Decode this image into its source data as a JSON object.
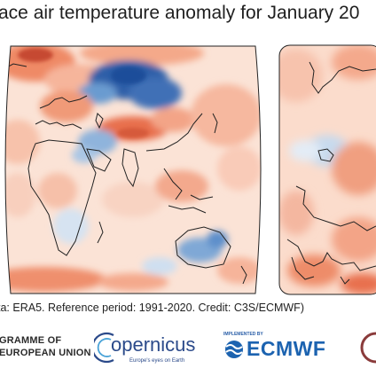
{
  "title": "ace air temperature anomaly for January 20",
  "credit": "ta: ERA5.  Reference period: 1991-2020.  Credit: C3S/ECMWF)",
  "logos": {
    "eu_programme": "GRAMME OF\nEUROPEAN UNION",
    "copernicus": "opernicus",
    "copernicus_tagline": "Europe's eyes on Earth",
    "implemented_by": "IMPLEMENTED BY",
    "ecmwf": "ECMWF"
  },
  "colors": {
    "warm_strong": "#c0392b",
    "warm": "#f08a6a",
    "warm_light": "#fbd3c1",
    "neutral": "#f7f7f7",
    "cool_light": "#c6dbef",
    "cool": "#6a9bd0",
    "cool_strong": "#1f4e9a",
    "coastline": "#222222",
    "brand_blue": "#1c63b0"
  },
  "icons": [
    "copernicus-logo-icon",
    "ecmwf-logo-icon",
    "eu-flag-icon"
  ]
}
